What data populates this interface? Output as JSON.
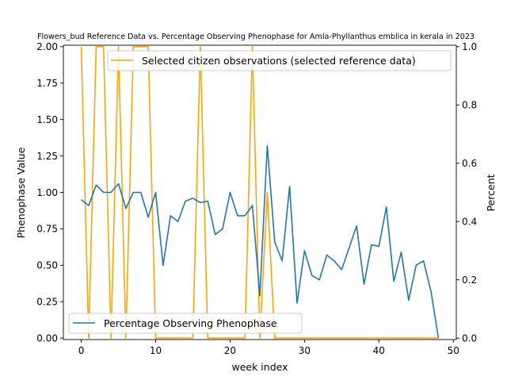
{
  "chart_data": {
    "type": "line",
    "title": "Flowers_bud Reference Data vs. Percentage Observing Phenophase for Amla-Phyllanthus emblica in kerala in 2023",
    "xlabel": "week index",
    "ylabel_left": "Phenophase Value",
    "ylabel_right": "Percent",
    "xlim": [
      -2.4,
      50.4
    ],
    "ylim_left": [
      -0.01,
      2.01
    ],
    "ylim_right": [
      -0.005,
      1.005
    ],
    "x_ticks": [
      0,
      10,
      20,
      30,
      40,
      50
    ],
    "y_left_ticks": [
      "0.00",
      "0.25",
      "0.50",
      "0.75",
      "1.00",
      "1.25",
      "1.50",
      "1.75",
      "2.00"
    ],
    "y_right_ticks": [
      "0.0",
      "0.2",
      "0.4",
      "0.6",
      "0.8",
      "1.0"
    ],
    "grid": false,
    "series": [
      {
        "name": "Percentage Observing Phenophase",
        "axis": "left",
        "color": "#1f77b4",
        "x": [
          0,
          1,
          2,
          3,
          4,
          5,
          6,
          7,
          8,
          9,
          10,
          11,
          12,
          13,
          14,
          15,
          16,
          17,
          18,
          19,
          20,
          21,
          22,
          23,
          24,
          25,
          26,
          27,
          28,
          29,
          30,
          31,
          32,
          33,
          34,
          35,
          36,
          37,
          38,
          39,
          40,
          41,
          42,
          43,
          44,
          45,
          46,
          47,
          48
        ],
        "values": [
          0.95,
          0.91,
          1.05,
          1.0,
          1.0,
          1.06,
          0.89,
          1.0,
          1.0,
          0.83,
          1.0,
          0.5,
          0.84,
          0.8,
          0.94,
          0.96,
          0.93,
          0.94,
          0.71,
          0.75,
          1.0,
          0.84,
          0.84,
          0.91,
          0.29,
          1.32,
          0.66,
          0.53,
          1.04,
          0.24,
          0.6,
          0.43,
          0.4,
          0.57,
          0.53,
          0.47,
          0.62,
          0.77,
          0.37,
          0.64,
          0.63,
          0.9,
          0.39,
          0.59,
          0.26,
          0.5,
          0.53,
          0.32,
          0.0
        ],
        "legend_position": "lower-left"
      },
      {
        "name": "Selected citizen observations (selected reference data)",
        "axis": "right",
        "color": "#ffa500",
        "x": [
          0,
          1,
          2,
          3,
          4,
          5,
          6,
          7,
          8,
          9,
          10,
          11,
          12,
          13,
          14,
          15,
          16,
          17,
          18,
          19,
          20,
          21,
          22,
          23,
          24,
          25,
          26,
          27,
          28,
          29,
          30,
          31,
          32,
          33,
          34,
          35,
          36,
          37,
          38,
          39,
          40,
          41,
          42,
          43,
          44,
          45,
          46,
          47,
          48
        ],
        "values": [
          1,
          0,
          1,
          1,
          0,
          1,
          0,
          1,
          1,
          1,
          0,
          0,
          0,
          0,
          0,
          0,
          1,
          0,
          0,
          0,
          0,
          0,
          0,
          1,
          0,
          0.5,
          0,
          0,
          0,
          0,
          0,
          0,
          0,
          0,
          0,
          0,
          0,
          0,
          0,
          0,
          0,
          0,
          0,
          0,
          0,
          0,
          0,
          0,
          0
        ],
        "legend_position": "upper-right"
      }
    ]
  }
}
